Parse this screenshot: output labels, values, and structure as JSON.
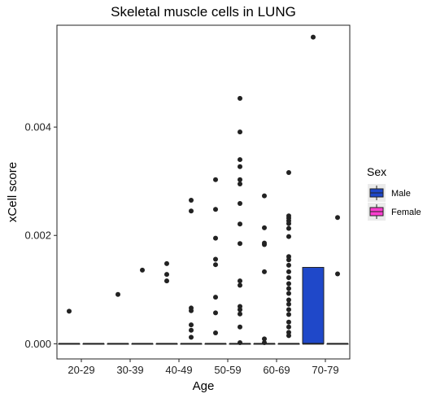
{
  "chart_data": {
    "type": "boxplot",
    "title": "Skeletal muscle cells in LUNG",
    "xlabel": "Age",
    "ylabel": "xCell score",
    "categories": [
      "20-29",
      "30-39",
      "40-49",
      "50-59",
      "60-69",
      "70-79"
    ],
    "y_ticks": [
      {
        "value": 0,
        "label": "0.000"
      },
      {
        "value": 0.002,
        "label": "0.002"
      },
      {
        "value": 0.004,
        "label": "0.004"
      }
    ],
    "ylim": [
      -0.00028,
      0.00588
    ],
    "grid": false,
    "legend": {
      "title": "Sex",
      "placement": "right",
      "entries": [
        {
          "name": "Male",
          "color": "#1f48c9"
        },
        {
          "name": "Female",
          "color": "#ff3fd0"
        }
      ]
    },
    "series": [
      {
        "name": "Male",
        "color": "#1f48c9",
        "boxes": [
          {
            "category": "20-29",
            "q1": 0,
            "median": 0,
            "q3": 0,
            "whisker_low": 0,
            "whisker_high": 0,
            "outliers": [
              0.0006
            ]
          },
          {
            "category": "30-39",
            "q1": 0,
            "median": 0,
            "q3": 0,
            "whisker_low": 0,
            "whisker_high": 0,
            "outliers": [
              0.00091
            ]
          },
          {
            "category": "40-49",
            "q1": 0,
            "median": 0,
            "q3": 0,
            "whisker_low": 0,
            "whisker_high": 0,
            "outliers": [
              0.00148,
              0.00128,
              0.00116
            ]
          },
          {
            "category": "50-59",
            "q1": 0,
            "median": 0,
            "q3": 0,
            "whisker_low": 0,
            "whisker_high": 0,
            "outliers": [
              0.00303,
              0.00248,
              0.00195,
              0.00156,
              0.00146,
              0.00086,
              0.00057,
              0.0002
            ]
          },
          {
            "category": "60-69",
            "q1": 0,
            "median": 0,
            "q3": 0,
            "whisker_low": 0,
            "whisker_high": 0,
            "outliers": [
              0.00273,
              0.00214,
              0.00186,
              0.00183,
              0.00133,
              9e-05,
              2e-05
            ]
          },
          {
            "category": "70-79",
            "q1": 0,
            "median": 0,
            "q3": 0.00141,
            "whisker_low": 0,
            "whisker_high": 0.00141,
            "outliers": [
              0.00566
            ]
          }
        ]
      },
      {
        "name": "Female",
        "color": "#ff3fd0",
        "boxes": [
          {
            "category": "20-29",
            "q1": 0,
            "median": 0,
            "q3": 0,
            "whisker_low": 0,
            "whisker_high": 0,
            "outliers": []
          },
          {
            "category": "30-39",
            "q1": 0,
            "median": 0,
            "q3": 0,
            "whisker_low": 0,
            "whisker_high": 0,
            "outliers": [
              0.00136
            ]
          },
          {
            "category": "40-49",
            "q1": 0,
            "median": 0,
            "q3": 0,
            "whisker_low": 0,
            "whisker_high": 0,
            "outliers": [
              0.00265,
              0.00245,
              0.00066,
              0.00061,
              0.00035,
              0.00025,
              0.00012
            ]
          },
          {
            "category": "50-59",
            "q1": 0,
            "median": 0,
            "q3": 0,
            "whisker_low": 0,
            "whisker_high": 0,
            "outliers": [
              0.00453,
              0.00391,
              0.0034,
              0.00327,
              0.00303,
              0.00295,
              0.00259,
              0.00221,
              0.00185,
              0.00116,
              0.00108,
              0.00069,
              0.00063,
              0.00055,
              0.00031,
              2e-05
            ]
          },
          {
            "category": "60-69",
            "q1": 0,
            "median": 0,
            "q3": 0,
            "whisker_low": 0,
            "whisker_high": 0,
            "outliers": [
              0.00316,
              0.00236,
              0.00232,
              0.00227,
              0.00222,
              0.00213,
              0.00198,
              0.00161,
              0.00155,
              0.00145,
              0.00133,
              0.00122,
              0.00111,
              0.00102,
              0.00093,
              0.00081,
              0.00073,
              0.00063,
              0.00054,
              0.0004,
              0.00031,
              0.00021,
              0.00015
            ]
          },
          {
            "category": "70-79",
            "q1": 0,
            "median": 0,
            "q3": 0,
            "whisker_low": 0,
            "whisker_high": 0,
            "outliers": [
              0.00233,
              0.00129
            ]
          }
        ]
      }
    ]
  }
}
